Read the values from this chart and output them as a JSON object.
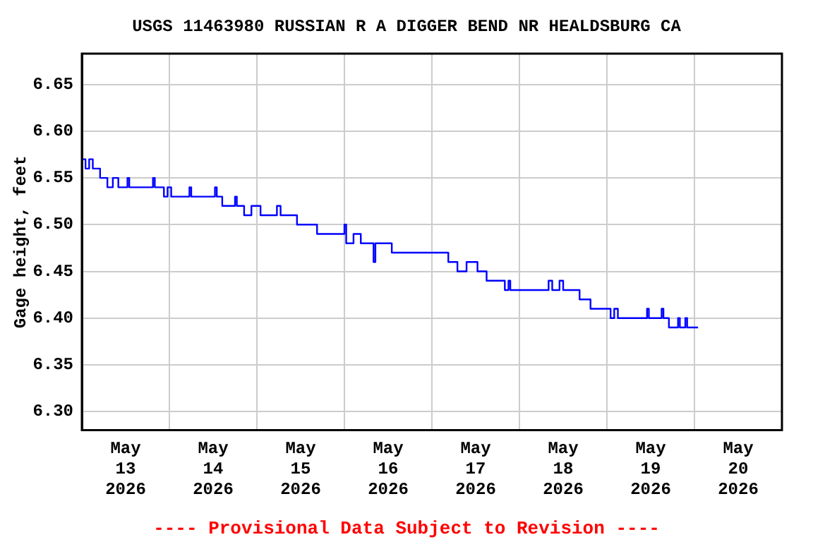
{
  "chart_data": {
    "type": "step",
    "title": "USGS 11463980 RUSSIAN R A DIGGER BEND NR HEALDSBURG CA",
    "ylabel": "Gage height, feet",
    "annotations": [
      "---- Provisional Data Subject to Revision ----"
    ],
    "x": [
      "2026-05-13T00:00",
      "2026-05-13T01:00",
      "2026-05-13T02:00",
      "2026-05-13T03:00",
      "2026-05-13T05:00",
      "2026-05-13T07:00",
      "2026-05-13T08:30",
      "2026-05-13T10:00",
      "2026-05-13T12:30",
      "2026-05-13T13:00",
      "2026-05-13T19:30",
      "2026-05-13T20:00",
      "2026-05-13T22:30",
      "2026-05-13T23:30",
      "2026-05-14T00:30",
      "2026-05-14T05:30",
      "2026-05-14T06:00",
      "2026-05-14T12:30",
      "2026-05-14T13:00",
      "2026-05-14T14:30",
      "2026-05-14T18:00",
      "2026-05-14T18:30",
      "2026-05-14T20:30",
      "2026-05-14T22:30",
      "2026-05-15T01:00",
      "2026-05-15T05:30",
      "2026-05-15T06:30",
      "2026-05-15T11:00",
      "2026-05-15T16:30",
      "2026-05-16T00:00",
      "2026-05-16T00:30",
      "2026-05-16T02:30",
      "2026-05-16T04:30",
      "2026-05-16T08:00",
      "2026-05-16T08:30",
      "2026-05-16T13:00",
      "2026-05-17T04:30",
      "2026-05-17T07:00",
      "2026-05-17T09:30",
      "2026-05-17T12:30",
      "2026-05-17T15:00",
      "2026-05-17T20:00",
      "2026-05-17T21:00",
      "2026-05-17T21:30",
      "2026-05-18T08:00",
      "2026-05-18T09:00",
      "2026-05-18T11:00",
      "2026-05-18T12:00",
      "2026-05-18T16:30",
      "2026-05-18T19:30",
      "2026-05-19T01:00",
      "2026-05-19T02:00",
      "2026-05-19T03:00",
      "2026-05-19T11:00",
      "2026-05-19T11:30",
      "2026-05-19T15:00",
      "2026-05-19T15:30",
      "2026-05-19T17:00",
      "2026-05-19T19:30",
      "2026-05-19T20:00",
      "2026-05-19T21:30",
      "2026-05-19T22:00",
      "2026-05-20T01:00"
    ],
    "series": [
      {
        "color": "#0000ff",
        "values": [
          6.57,
          6.56,
          6.57,
          6.56,
          6.55,
          6.54,
          6.55,
          6.54,
          6.55,
          6.54,
          6.55,
          6.54,
          6.53,
          6.54,
          6.53,
          6.54,
          6.53,
          6.54,
          6.53,
          6.52,
          6.53,
          6.52,
          6.51,
          6.52,
          6.51,
          6.52,
          6.51,
          6.5,
          6.49,
          6.5,
          6.48,
          6.49,
          6.48,
          6.46,
          6.48,
          6.47,
          6.46,
          6.45,
          6.46,
          6.45,
          6.44,
          6.43,
          6.44,
          6.43,
          6.44,
          6.43,
          6.44,
          6.43,
          6.42,
          6.41,
          6.4,
          6.41,
          6.4,
          6.41,
          6.4,
          6.41,
          6.4,
          6.39,
          6.4,
          6.39,
          6.4,
          6.39,
          6.39
        ]
      }
    ],
    "xlim": [
      "2026-05-13T00:00",
      "2026-05-21T00:00"
    ],
    "xticks": [
      {
        "value": "2026-05-13T00:00",
        "label": null
      },
      {
        "value": "2026-05-13T12:00",
        "label": "May 13 2026"
      },
      {
        "value": "2026-05-14T00:00",
        "label": null
      },
      {
        "value": "2026-05-14T12:00",
        "label": "May 14 2026"
      },
      {
        "value": "2026-05-15T00:00",
        "label": null
      },
      {
        "value": "2026-05-15T12:00",
        "label": "May 15 2026"
      },
      {
        "value": "2026-05-16T00:00",
        "label": null
      },
      {
        "value": "2026-05-16T12:00",
        "label": "May 16 2026"
      },
      {
        "value": "2026-05-17T00:00",
        "label": null
      },
      {
        "value": "2026-05-17T12:00",
        "label": "May 17 2026"
      },
      {
        "value": "2026-05-18T00:00",
        "label": null
      },
      {
        "value": "2026-05-18T12:00",
        "label": "May 18 2026"
      },
      {
        "value": "2026-05-19T00:00",
        "label": null
      },
      {
        "value": "2026-05-19T12:00",
        "label": "May 19 2026"
      },
      {
        "value": "2026-05-20T00:00",
        "label": null
      },
      {
        "value": "2026-05-20T12:00",
        "label": "May 20 2026"
      },
      {
        "value": "2026-05-21T00:00",
        "label": null
      }
    ],
    "ylim": [
      6.28,
      6.683
    ],
    "yticks": [
      {
        "value": 6.3,
        "label": "6.30"
      },
      {
        "value": 6.35,
        "label": "6.35"
      },
      {
        "value": 6.4,
        "label": "6.40"
      },
      {
        "value": 6.45,
        "label": "6.45"
      },
      {
        "value": 6.5,
        "label": "6.50"
      },
      {
        "value": 6.55,
        "label": "6.55"
      },
      {
        "value": 6.6,
        "label": "6.60"
      },
      {
        "value": 6.65,
        "label": "6.65"
      }
    ],
    "grid": true,
    "legend": false,
    "marker": "none",
    "line_style": "solid"
  }
}
